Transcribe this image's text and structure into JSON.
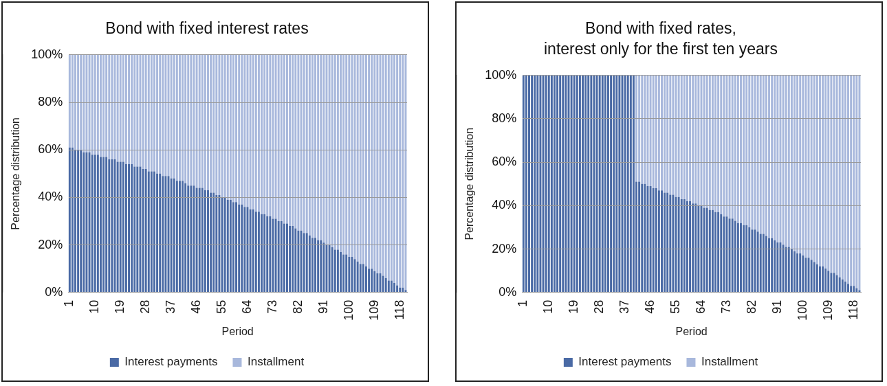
{
  "chart_data": [
    {
      "type": "bar",
      "title": "Bond with fixed interest rates",
      "xlabel": "Period",
      "ylabel": "Percentage distribution",
      "stacked": true,
      "grid": "y",
      "legend": "bottom",
      "categories": [
        "1",
        null,
        null,
        null,
        null,
        null,
        null,
        null,
        null,
        "10",
        null,
        null,
        null,
        null,
        null,
        null,
        null,
        null,
        "19",
        null,
        null,
        null,
        null,
        null,
        null,
        null,
        null,
        "28",
        null,
        null,
        null,
        null,
        null,
        null,
        null,
        null,
        "37",
        null,
        null,
        null,
        null,
        null,
        null,
        null,
        null,
        "46",
        null,
        null,
        null,
        null,
        null,
        null,
        null,
        null,
        "55",
        null,
        null,
        null,
        null,
        null,
        null,
        null,
        null,
        "64",
        null,
        null,
        null,
        null,
        null,
        null,
        null,
        null,
        "73",
        null,
        null,
        null,
        null,
        null,
        null,
        null,
        null,
        "82",
        null,
        null,
        null,
        null,
        null,
        null,
        null,
        null,
        "91",
        null,
        null,
        null,
        null,
        null,
        null,
        null,
        null,
        "100",
        null,
        null,
        null,
        null,
        null,
        null,
        null,
        null,
        "109",
        null,
        null,
        null,
        null,
        null,
        null,
        null,
        null,
        "118",
        null,
        null
      ],
      "ylim": [
        0,
        100
      ],
      "yticks": [
        {
          "value": 0,
          "label": "0%"
        },
        {
          "value": 20,
          "label": "20%"
        },
        {
          "value": 40,
          "label": "40%"
        },
        {
          "value": 60,
          "label": "60%"
        },
        {
          "value": 80,
          "label": "80%"
        },
        {
          "value": 100,
          "label": "100%"
        }
      ],
      "series": [
        {
          "name": "Interest payments",
          "color": "#4a6aa5",
          "values": [
            61,
            61,
            60,
            60,
            60,
            59,
            59,
            59,
            58,
            58,
            58,
            57,
            57,
            57,
            56,
            56,
            56,
            55,
            55,
            55,
            54,
            54,
            54,
            53,
            53,
            53,
            52,
            52,
            51,
            51,
            51,
            50,
            50,
            49,
            49,
            49,
            48,
            48,
            47,
            47,
            47,
            46,
            45,
            45,
            45,
            44,
            44,
            44,
            43,
            43,
            42,
            42,
            41,
            41,
            40,
            40,
            39,
            39,
            38,
            38,
            37,
            37,
            36,
            36,
            35,
            35,
            34,
            34,
            33,
            33,
            32,
            32,
            31,
            31,
            30,
            30,
            29,
            29,
            28,
            28,
            27,
            26,
            26,
            25,
            25,
            24,
            23,
            23,
            22,
            22,
            21,
            20,
            20,
            19,
            18,
            18,
            17,
            16,
            16,
            15,
            15,
            14,
            13,
            12,
            12,
            11,
            10,
            10,
            9,
            8,
            8,
            7,
            6,
            5,
            5,
            4,
            3,
            2,
            2,
            1
          ]
        },
        {
          "name": "Installment",
          "color": "#a8b8dc",
          "values": [
            39,
            39,
            40,
            40,
            40,
            41,
            41,
            41,
            42,
            42,
            42,
            43,
            43,
            43,
            44,
            44,
            44,
            45,
            45,
            45,
            46,
            46,
            46,
            47,
            47,
            47,
            48,
            48,
            49,
            49,
            49,
            50,
            50,
            51,
            51,
            51,
            52,
            52,
            53,
            53,
            53,
            54,
            55,
            55,
            55,
            56,
            56,
            56,
            57,
            57,
            58,
            58,
            59,
            59,
            60,
            60,
            61,
            61,
            62,
            62,
            63,
            63,
            64,
            64,
            65,
            65,
            66,
            66,
            67,
            67,
            68,
            68,
            69,
            69,
            70,
            70,
            71,
            71,
            72,
            72,
            73,
            74,
            74,
            75,
            75,
            76,
            77,
            77,
            78,
            78,
            79,
            80,
            80,
            81,
            82,
            82,
            83,
            84,
            84,
            85,
            85,
            86,
            87,
            88,
            88,
            89,
            90,
            90,
            91,
            92,
            92,
            93,
            94,
            95,
            95,
            96,
            97,
            98,
            98,
            99
          ]
        }
      ]
    },
    {
      "type": "bar",
      "title": "Bond with fixed rates,\ninterest only for the first ten years",
      "xlabel": "Period",
      "ylabel": "Percentage distribution",
      "stacked": true,
      "grid": "y",
      "legend": "bottom",
      "categories": [
        "1",
        null,
        null,
        null,
        null,
        null,
        null,
        null,
        null,
        "10",
        null,
        null,
        null,
        null,
        null,
        null,
        null,
        null,
        "19",
        null,
        null,
        null,
        null,
        null,
        null,
        null,
        null,
        "28",
        null,
        null,
        null,
        null,
        null,
        null,
        null,
        null,
        "37",
        null,
        null,
        null,
        null,
        null,
        null,
        null,
        null,
        "46",
        null,
        null,
        null,
        null,
        null,
        null,
        null,
        null,
        "55",
        null,
        null,
        null,
        null,
        null,
        null,
        null,
        null,
        "64",
        null,
        null,
        null,
        null,
        null,
        null,
        null,
        null,
        "73",
        null,
        null,
        null,
        null,
        null,
        null,
        null,
        null,
        "82",
        null,
        null,
        null,
        null,
        null,
        null,
        null,
        null,
        "91",
        null,
        null,
        null,
        null,
        null,
        null,
        null,
        null,
        "100",
        null,
        null,
        null,
        null,
        null,
        null,
        null,
        null,
        "109",
        null,
        null,
        null,
        null,
        null,
        null,
        null,
        null,
        "118",
        null,
        null
      ],
      "ylim": [
        0,
        100
      ],
      "yticks": [
        {
          "value": 0,
          "label": "0%"
        },
        {
          "value": 20,
          "label": "20%"
        },
        {
          "value": 40,
          "label": "40%"
        },
        {
          "value": 60,
          "label": "60%"
        },
        {
          "value": 80,
          "label": "80%"
        },
        {
          "value": 100,
          "label": "100%"
        }
      ],
      "series": [
        {
          "name": "Interest payments",
          "color": "#4a6aa5",
          "values": [
            100,
            100,
            100,
            100,
            100,
            100,
            100,
            100,
            100,
            100,
            100,
            100,
            100,
            100,
            100,
            100,
            100,
            100,
            100,
            100,
            100,
            100,
            100,
            100,
            100,
            100,
            100,
            100,
            100,
            100,
            100,
            100,
            100,
            100,
            100,
            100,
            100,
            100,
            100,
            100,
            51,
            51,
            50,
            50,
            49,
            49,
            48,
            48,
            47,
            47,
            46,
            46,
            45,
            45,
            44,
            44,
            43,
            43,
            42,
            42,
            41,
            41,
            40,
            40,
            39,
            39,
            38,
            38,
            37,
            37,
            36,
            35,
            35,
            34,
            34,
            33,
            32,
            32,
            31,
            31,
            30,
            29,
            29,
            28,
            27,
            27,
            26,
            25,
            25,
            24,
            23,
            23,
            22,
            21,
            21,
            20,
            19,
            18,
            18,
            17,
            16,
            16,
            15,
            14,
            13,
            12,
            12,
            11,
            10,
            9,
            9,
            8,
            7,
            6,
            5,
            4,
            3,
            3,
            2,
            1
          ]
        },
        {
          "name": "Installment",
          "color": "#a8b8dc",
          "values": [
            0,
            0,
            0,
            0,
            0,
            0,
            0,
            0,
            0,
            0,
            0,
            0,
            0,
            0,
            0,
            0,
            0,
            0,
            0,
            0,
            0,
            0,
            0,
            0,
            0,
            0,
            0,
            0,
            0,
            0,
            0,
            0,
            0,
            0,
            0,
            0,
            0,
            0,
            0,
            0,
            49,
            49,
            50,
            50,
            51,
            51,
            52,
            52,
            53,
            53,
            54,
            54,
            55,
            55,
            56,
            56,
            57,
            57,
            58,
            58,
            59,
            59,
            60,
            60,
            61,
            61,
            62,
            62,
            63,
            63,
            64,
            65,
            65,
            66,
            66,
            67,
            68,
            68,
            69,
            69,
            70,
            71,
            71,
            72,
            73,
            73,
            74,
            75,
            75,
            76,
            77,
            77,
            78,
            79,
            79,
            80,
            81,
            82,
            82,
            83,
            84,
            84,
            85,
            86,
            87,
            88,
            88,
            89,
            90,
            91,
            91,
            92,
            93,
            94,
            95,
            96,
            97,
            97,
            98,
            99
          ]
        }
      ]
    }
  ]
}
